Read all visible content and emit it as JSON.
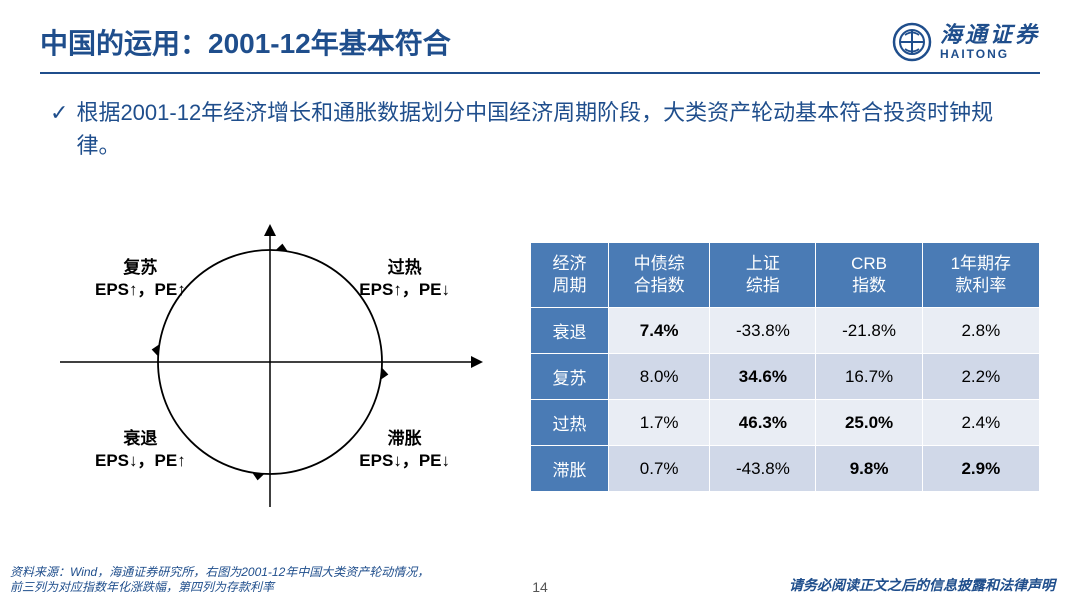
{
  "title": "中国的运用：2001-12年基本符合",
  "logo": {
    "cn": "海通证券",
    "en": "HAITONG"
  },
  "bullet": "根据2001-12年经济增长和通胀数据划分中国经济周期阶段，大类资产轮动基本符合投资时钟规律。",
  "diagram": {
    "circle_stroke": "#000000",
    "axis_stroke": "#000000",
    "quadrants": {
      "q1": {
        "title": "复苏",
        "sub": "EPS↑，PE↑"
      },
      "q2": {
        "title": "过热",
        "sub": "EPS↑，PE↓"
      },
      "q3": {
        "title": "衰退",
        "sub": "EPS↓，PE↑"
      },
      "q4": {
        "title": "滞胀",
        "sub": "EPS↓，PE↓"
      }
    }
  },
  "table": {
    "header_bg": "#4a7bb5",
    "header_color": "#ffffff",
    "row_odd_bg": "#e9edf4",
    "row_even_bg": "#d0d8e8",
    "columns": [
      "经济\n周期",
      "中债综\n合指数",
      "上证\n综指",
      "CRB\n指数",
      "1年期存\n款利率"
    ],
    "rows": [
      {
        "label": "衰退",
        "cells": [
          {
            "v": "7.4%",
            "bold": true
          },
          {
            "v": "-33.8%",
            "bold": false
          },
          {
            "v": "-21.8%",
            "bold": false
          },
          {
            "v": "2.8%",
            "bold": false
          }
        ]
      },
      {
        "label": "复苏",
        "cells": [
          {
            "v": "8.0%",
            "bold": false
          },
          {
            "v": "34.6%",
            "bold": true
          },
          {
            "v": "16.7%",
            "bold": false
          },
          {
            "v": "2.2%",
            "bold": false
          }
        ]
      },
      {
        "label": "过热",
        "cells": [
          {
            "v": "1.7%",
            "bold": false
          },
          {
            "v": "46.3%",
            "bold": true
          },
          {
            "v": "25.0%",
            "bold": true
          },
          {
            "v": "2.4%",
            "bold": false
          }
        ]
      },
      {
        "label": "滞胀",
        "cells": [
          {
            "v": "0.7%",
            "bold": false
          },
          {
            "v": "-43.8%",
            "bold": false
          },
          {
            "v": "9.8%",
            "bold": true
          },
          {
            "v": "2.9%",
            "bold": true
          }
        ]
      }
    ]
  },
  "footer": {
    "source": "资料来源：Wind，海通证券研究所，右图为2001-12年中国大类资产轮动情况，前三列为对应指数年化涨跌幅，第四列为存款利率",
    "page": "14",
    "disclaimer": "请务必阅读正文之后的信息披露和法律声明"
  }
}
